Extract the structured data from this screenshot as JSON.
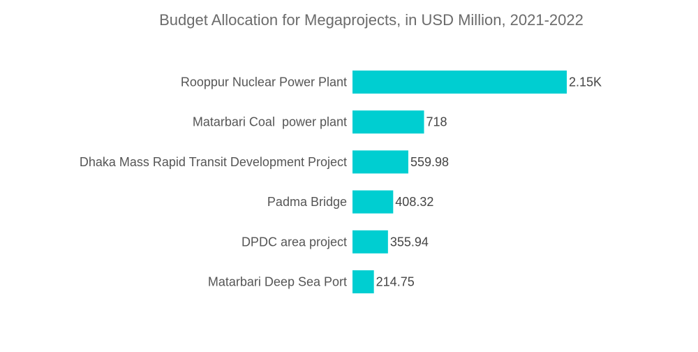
{
  "chart_data": {
    "type": "bar",
    "orientation": "horizontal",
    "title": "Budget Allocation for Megaprojects, in USD Million, 2021-2022",
    "categories": [
      "Rooppur Nuclear Power Plant",
      "Matarbari Coal  power plant",
      "Dhaka Mass Rapid Transit Development Project",
      "Padma Bridge",
      "DPDC area project",
      "Matarbari Deep Sea Port"
    ],
    "values": [
      2150,
      718,
      559.98,
      408.32,
      355.94,
      214.75
    ],
    "value_labels": [
      "2.15K",
      "718",
      "559.98",
      "408.32",
      "355.94",
      "214.75"
    ],
    "bar_color": "#00CED1",
    "grid": false,
    "legend": "none",
    "xlim": [
      0,
      2150
    ]
  }
}
